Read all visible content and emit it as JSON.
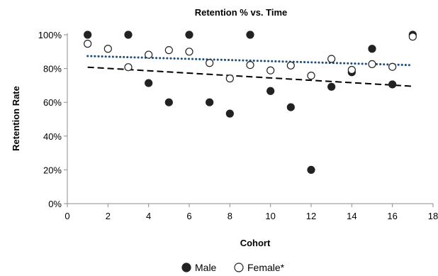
{
  "chart_data": {
    "type": "scatter",
    "title": "Retention % vs. Time",
    "xlabel": "Cohort",
    "ylabel": "Retention Rate",
    "xlim": [
      0,
      18
    ],
    "ylim": [
      0,
      100
    ],
    "x_ticks": [
      0,
      2,
      4,
      6,
      8,
      10,
      12,
      14,
      16,
      18
    ],
    "x_tick_labels": [
      "0",
      "2",
      "4",
      "6",
      "8",
      "10",
      "12",
      "14",
      "16",
      "18"
    ],
    "y_ticks": [
      0,
      20,
      40,
      60,
      80,
      100
    ],
    "y_tick_labels": [
      "0%",
      "20%",
      "40%",
      "60%",
      "80%",
      "100%"
    ],
    "grid": false,
    "legend_position": "bottom",
    "series": [
      {
        "name": "Male",
        "marker": "filled-circle",
        "color": "#222222",
        "points": [
          [
            1,
            100
          ],
          [
            3,
            100
          ],
          [
            4,
            71.4
          ],
          [
            5,
            60
          ],
          [
            6,
            100
          ],
          [
            7,
            60
          ],
          [
            8,
            53.3
          ],
          [
            9,
            100
          ],
          [
            10,
            66.7
          ],
          [
            11,
            57.1
          ],
          [
            12,
            20
          ],
          [
            13,
            69.2
          ],
          [
            14,
            77.8
          ],
          [
            15,
            91.7
          ],
          [
            16,
            70.6
          ],
          [
            17,
            100
          ]
        ],
        "trendline": {
          "style": "dashed",
          "color": "#000000",
          "start": [
            1,
            80.8
          ],
          "end": [
            17,
            69.5
          ]
        }
      },
      {
        "name": "Female*",
        "marker": "open-circle",
        "color": "#222222",
        "points": [
          [
            1,
            94.7
          ],
          [
            2,
            91.7
          ],
          [
            3,
            80.8
          ],
          [
            4,
            88.2
          ],
          [
            5,
            90.9
          ],
          [
            6,
            90
          ],
          [
            7,
            83.3
          ],
          [
            8,
            74.1
          ],
          [
            9,
            82.1
          ],
          [
            10,
            78.9
          ],
          [
            11,
            81.8
          ],
          [
            12,
            75.8
          ],
          [
            13,
            85.7
          ],
          [
            14,
            79.2
          ],
          [
            15,
            82.6
          ],
          [
            16,
            81
          ],
          [
            17,
            98.9
          ]
        ],
        "trendline": {
          "style": "dotted",
          "color": "#1f4e79",
          "start": [
            1,
            87.4
          ],
          "end": [
            17,
            82
          ]
        }
      }
    ]
  }
}
